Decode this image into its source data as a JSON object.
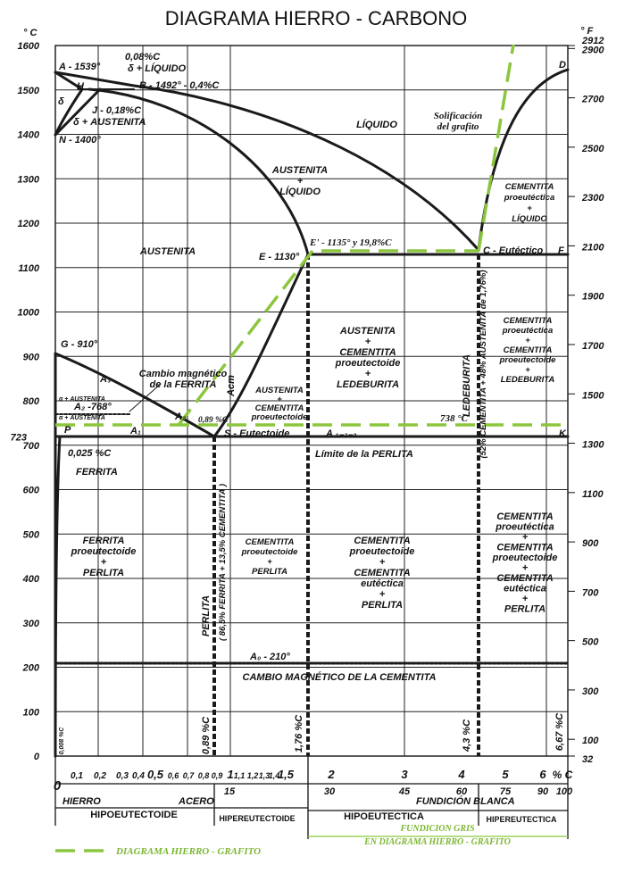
{
  "title": "DIAGRAMA HIERRO - CARBONO",
  "axis": {
    "c_unit": "° C",
    "f_unit": "° F",
    "c_ticks": [
      "0",
      "100",
      "200",
      "300",
      "400",
      "500",
      "600",
      "700",
      "800",
      "900",
      "1000",
      "1100",
      "1200",
      "1300",
      "1400",
      "1500",
      "1600"
    ],
    "c_extra": "723",
    "f_ticks": [
      "32",
      "100",
      "300",
      "500",
      "700",
      "900",
      "1100",
      "1300",
      "1500",
      "1700",
      "1900",
      "2100",
      "2300",
      "2500",
      "2700",
      "2900",
      "2912"
    ],
    "x_ticks": [
      "0",
      "0,1",
      "0,2",
      "0,3",
      "0,4",
      "0,5",
      "0,6",
      "0,7",
      "0,8",
      "0,9",
      "1",
      "1,1",
      "1,2",
      "1,3",
      "1,4",
      "1,5",
      "2",
      "3",
      "4",
      "5",
      "6",
      "% C"
    ],
    "x_ticks_2": [
      "15",
      "30",
      "45",
      "60",
      "75",
      "90",
      "100"
    ]
  },
  "regions": [
    {
      "lines": [
        "A - 1539°"
      ]
    },
    {
      "lines": [
        "0,08%C"
      ]
    },
    {
      "lines": [
        "δ + LÍQUIDO"
      ]
    },
    {
      "lines": [
        "H"
      ]
    },
    {
      "lines": [
        "B - 1492° - 0,4%C"
      ]
    },
    {
      "lines": [
        "δ"
      ]
    },
    {
      "lines": [
        "J - 0,18%C"
      ]
    },
    {
      "lines": [
        "δ + AUSTENITA"
      ]
    },
    {
      "lines": [
        "N - 1400°"
      ]
    },
    {
      "lines": [
        "LÍQUIDO"
      ]
    },
    {
      "lines": [
        "Solificación",
        "del grafito"
      ]
    },
    {
      "lines": [
        "AUSTENITA",
        "+",
        "LÍQUIDO"
      ]
    },
    {
      "lines": [
        "CEMENTITA",
        "proeutéctica",
        "+",
        "LÍQUIDO"
      ]
    },
    {
      "lines": [
        "AUSTENITA"
      ]
    },
    {
      "lines": [
        "E' - 1135° y 19,8%C"
      ]
    },
    {
      "lines": [
        "E - 1130°"
      ]
    },
    {
      "lines": [
        "C - Eutéctico"
      ]
    },
    {
      "lines": [
        "F"
      ]
    },
    {
      "lines": [
        "D"
      ]
    },
    {
      "lines": [
        "AUSTENITA",
        "+",
        "CEMENTITA",
        "proeutectoide",
        "+",
        "LEDEBURITA"
      ]
    },
    {
      "lines": [
        "LEDEBURITA"
      ]
    },
    {
      "lines": [
        "(52% CEMENTITA + 48% AUSTENITA de 1,76%)"
      ]
    },
    {
      "lines": [
        "CEMENTITA",
        "proeutéctica",
        "+",
        "CEMENTITA",
        "proeutectoide",
        "+",
        "LEDEBURITA"
      ]
    },
    {
      "lines": [
        "G - 910°"
      ]
    },
    {
      "lines": [
        "A₃"
      ]
    },
    {
      "lines": [
        "Cambio magnético",
        "de la FERRITA"
      ]
    },
    {
      "lines": [
        "Acm"
      ]
    },
    {
      "lines": [
        "AUSTENITA",
        "+",
        "CEMENTITA",
        "proeutectoide"
      ]
    },
    {
      "lines": [
        "α + AUSTENITA"
      ]
    },
    {
      "lines": [
        "A₂ -768°"
      ]
    },
    {
      "lines": [
        "α + AUSTENITA"
      ]
    },
    {
      "lines": [
        "A₂"
      ]
    },
    {
      "lines": [
        "0,89 %C"
      ]
    },
    {
      "lines": [
        "738 °C"
      ]
    },
    {
      "lines": [
        "P"
      ]
    },
    {
      "lines": [
        "A₁"
      ]
    },
    {
      "lines": [
        "S - Eutectoide"
      ]
    },
    {
      "lines": [
        "A ₁₋₂₋₃"
      ]
    },
    {
      "lines": [
        "K"
      ]
    },
    {
      "lines": [
        "0,025 %C"
      ]
    },
    {
      "lines": [
        "FERRITA"
      ]
    },
    {
      "lines": [
        "Límite de la PERLITA"
      ]
    },
    {
      "lines": [
        "FERRITA",
        "proeutectoide",
        "+",
        "PERLITA"
      ]
    },
    {
      "lines": [
        "PERLITA"
      ]
    },
    {
      "lines": [
        "( 86,5% FERRITA + 13,5% CEMENTITA )"
      ]
    },
    {
      "lines": [
        "CEMENTITA",
        "proeutectoide",
        "+",
        "PERLITA"
      ]
    },
    {
      "lines": [
        "CEMENTITA",
        "proeutectoide",
        "+",
        "CEMENTITA",
        "eutéctica",
        "+",
        "PERLITA"
      ]
    },
    {
      "lines": [
        "CEMENTITA",
        "proeutéctica",
        "+",
        "CEMENTITA",
        "proeutectoide",
        "+",
        "CEMENTITA",
        "eutéctica",
        "+",
        "PERLITA"
      ]
    },
    {
      "lines": [
        "A₀ - 210°"
      ]
    },
    {
      "lines": [
        "CAMBIO MAGNÉTICO DE LA CEMENTITA"
      ]
    },
    {
      "lines": [
        "0,008 %C"
      ]
    },
    {
      "lines": [
        "0,89 %C"
      ]
    },
    {
      "lines": [
        "1,76 %C"
      ]
    },
    {
      "lines": [
        "4,3 %C"
      ]
    },
    {
      "lines": [
        "6,67 %C"
      ]
    }
  ],
  "bottom": [
    "HIERRO",
    "ACERO",
    "FUNDICIÓN BLANCA",
    "HIPOEUTECTOIDE",
    "HIPEREUTECTOIDE",
    "HIPOEUTECTICA",
    "HIPEREUTECTICA",
    "FUNDICION GRIS",
    "EN DIAGRAMA HIERRO - GRAFITO"
  ],
  "legend": "DIAGRAMA HIERRO - GRAFITO"
}
